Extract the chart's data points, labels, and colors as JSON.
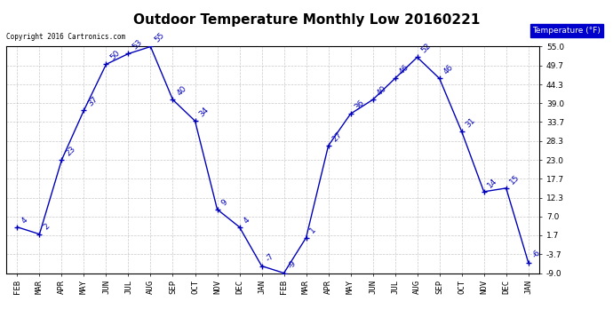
{
  "title": "Outdoor Temperature Monthly Low 20160221",
  "copyright": "Copyright 2016 Cartronics.com",
  "legend_label": "Temperature (°F)",
  "months": [
    "FEB",
    "MAR",
    "APR",
    "MAY",
    "JUN",
    "JUL",
    "AUG",
    "SEP",
    "OCT",
    "NOV",
    "DEC",
    "JAN",
    "FEB",
    "MAR",
    "APR",
    "MAY",
    "JUN",
    "JUL",
    "AUG",
    "SEP",
    "OCT",
    "NOV",
    "DEC",
    "JAN"
  ],
  "values": [
    4,
    2,
    23,
    37,
    50,
    53,
    55,
    40,
    34,
    9,
    4,
    -7,
    -9,
    1,
    27,
    36,
    40,
    46,
    52,
    46,
    31,
    14,
    15,
    -6
  ],
  "ylim": [
    -9.0,
    55.0
  ],
  "yticks": [
    -9.0,
    -3.7,
    1.7,
    7.0,
    12.3,
    17.7,
    23.0,
    28.3,
    33.7,
    39.0,
    44.3,
    49.7,
    55.0
  ],
  "ytick_labels": [
    "-9.0",
    "-3.7",
    "1.7",
    "7.0",
    "12.3",
    "17.7",
    "23.0",
    "28.3",
    "33.7",
    "39.0",
    "44.3",
    "49.7",
    "55.0"
  ],
  "line_color": "#0000bb",
  "marker_color": "#0000bb",
  "bg_color": "#ffffff",
  "grid_color": "#bbbbbb",
  "title_fontsize": 11,
  "label_fontsize": 6.5,
  "annotation_fontsize": 6.5,
  "legend_bg": "#0000cc",
  "legend_fg": "#ffffff"
}
